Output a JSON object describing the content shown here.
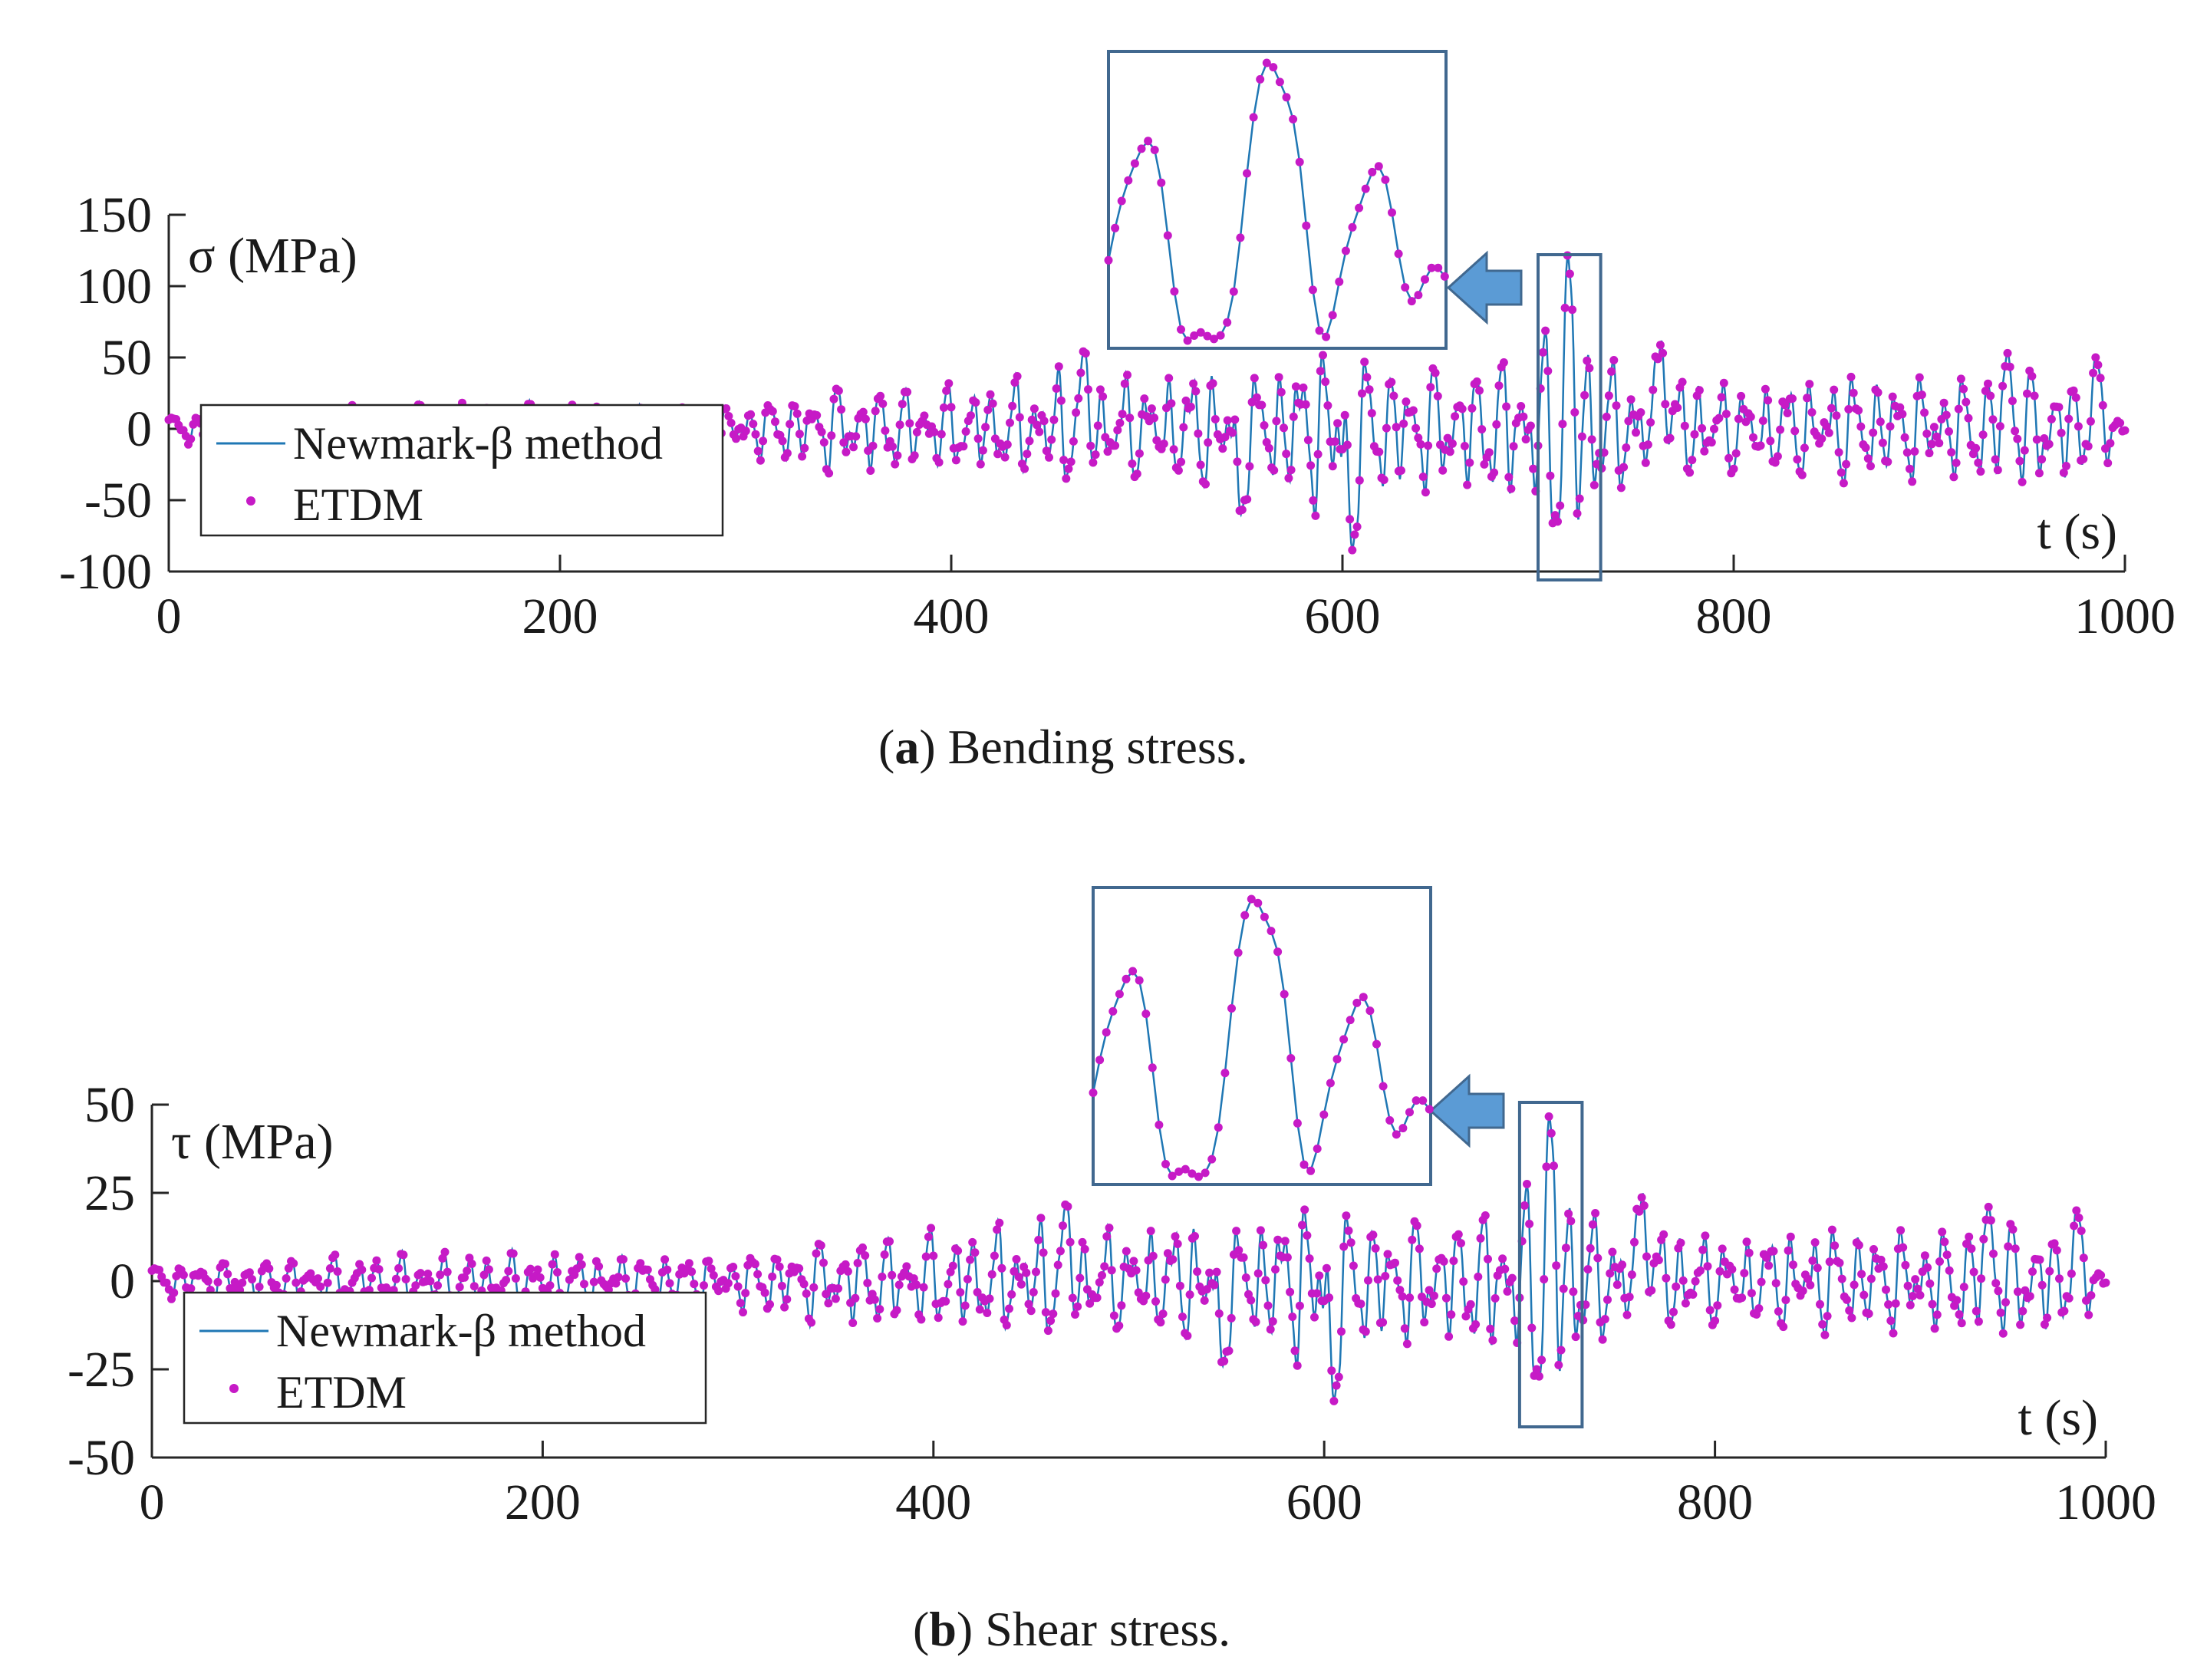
{
  "chart_data": [
    {
      "id": "a",
      "type": "line",
      "caption_letter": "a",
      "caption_text": " Bending stress.",
      "ylabel": "σ (MPa)",
      "xlabel": "t (s)",
      "xlim": [
        0,
        1000
      ],
      "ylim": [
        -100,
        150
      ],
      "xticks": [
        0,
        200,
        400,
        600,
        800,
        1000
      ],
      "xtick_labels": [
        "0",
        "200",
        "400",
        "600",
        "800",
        "1000"
      ],
      "yticks": [
        -100,
        -50,
        0,
        50,
        100,
        150
      ],
      "ytick_labels": [
        "-100",
        "-50",
        "0",
        "50",
        "100",
        "150"
      ],
      "legend": [
        "Newmark-β method",
        "ETDM"
      ],
      "highlight_window": [
        700,
        732
      ],
      "inset": {
        "window": [
          700,
          732
        ],
        "note": "zoomed view of highlighted window"
      },
      "series": [
        {
          "name": "Newmark-β method",
          "style": "line",
          "color": "#1f77b4"
        },
        {
          "name": "ETDM",
          "style": "markers",
          "color": "#c61ac6"
        }
      ],
      "envelope": [
        [
          0,
          15
        ],
        [
          100,
          20
        ],
        [
          200,
          22
        ],
        [
          280,
          25
        ],
        [
          300,
          25
        ],
        [
          340,
          40
        ],
        [
          400,
          38
        ],
        [
          440,
          45
        ],
        [
          460,
          55
        ],
        [
          500,
          45
        ],
        [
          540,
          60
        ],
        [
          560,
          55
        ],
        [
          600,
          82
        ],
        [
          620,
          60
        ],
        [
          660,
          55
        ],
        [
          700,
          75
        ],
        [
          715,
          120
        ],
        [
          740,
          55
        ],
        [
          760,
          62
        ],
        [
          800,
          40
        ],
        [
          830,
          45
        ],
        [
          860,
          50
        ],
        [
          900,
          45
        ],
        [
          940,
          53
        ],
        [
          980,
          50
        ],
        [
          1000,
          20
        ]
      ],
      "extremes": [
        {
          "t": 605,
          "v": -85
        },
        {
          "t": 715,
          "v": 125
        },
        {
          "t": 710,
          "v": -65
        },
        {
          "t": 548,
          "v": -60
        },
        {
          "t": 763,
          "v": 62
        },
        {
          "t": 468,
          "v": 55
        },
        {
          "t": 940,
          "v": 53
        },
        {
          "t": 985,
          "v": 50
        }
      ]
    },
    {
      "id": "b",
      "type": "line",
      "caption_letter": "b",
      "caption_text": " Shear stress.",
      "ylabel": "τ (MPa)",
      "xlabel": "t (s)",
      "xlim": [
        0,
        1000
      ],
      "ylim": [
        -50,
        50
      ],
      "xticks": [
        0,
        200,
        400,
        600,
        800,
        1000
      ],
      "xtick_labels": [
        "0",
        "200",
        "400",
        "600",
        "800",
        "1000"
      ],
      "yticks": [
        -50,
        -25,
        0,
        25,
        50
      ],
      "ytick_labels": [
        "-50",
        "-25",
        "0",
        "25",
        "50"
      ],
      "legend": [
        "Newmark-β method",
        "ETDM"
      ],
      "highlight_window": [
        700,
        732
      ],
      "inset": {
        "window": [
          700,
          732
        ],
        "note": "zoomed view of highlighted window"
      },
      "series": [
        {
          "name": "Newmark-β method",
          "style": "line",
          "color": "#1f77b4"
        },
        {
          "name": "ETDM",
          "style": "markers",
          "color": "#c61ac6"
        }
      ],
      "envelope": [
        [
          0,
          7
        ],
        [
          100,
          9
        ],
        [
          200,
          10
        ],
        [
          280,
          10
        ],
        [
          300,
          10
        ],
        [
          340,
          15
        ],
        [
          400,
          18
        ],
        [
          440,
          20
        ],
        [
          460,
          22
        ],
        [
          500,
          18
        ],
        [
          540,
          24
        ],
        [
          560,
          22
        ],
        [
          600,
          32
        ],
        [
          620,
          24
        ],
        [
          660,
          22
        ],
        [
          700,
          30
        ],
        [
          715,
          48
        ],
        [
          740,
          22
        ],
        [
          760,
          25
        ],
        [
          800,
          16
        ],
        [
          830,
          18
        ],
        [
          860,
          20
        ],
        [
          900,
          18
        ],
        [
          940,
          21
        ],
        [
          980,
          20
        ],
        [
          1000,
          8
        ]
      ],
      "extremes": [
        {
          "t": 605,
          "v": -34
        },
        {
          "t": 715,
          "v": 48
        },
        {
          "t": 710,
          "v": -27
        },
        {
          "t": 548,
          "v": -24
        },
        {
          "t": 763,
          "v": 25
        },
        {
          "t": 468,
          "v": 22
        },
        {
          "t": 940,
          "v": 21
        },
        {
          "t": 985,
          "v": 20
        }
      ]
    }
  ],
  "colors": {
    "line": "#1f77b4",
    "marker": "#c61ac6",
    "box": "#41688f",
    "arrow": "#5b9bd5"
  }
}
